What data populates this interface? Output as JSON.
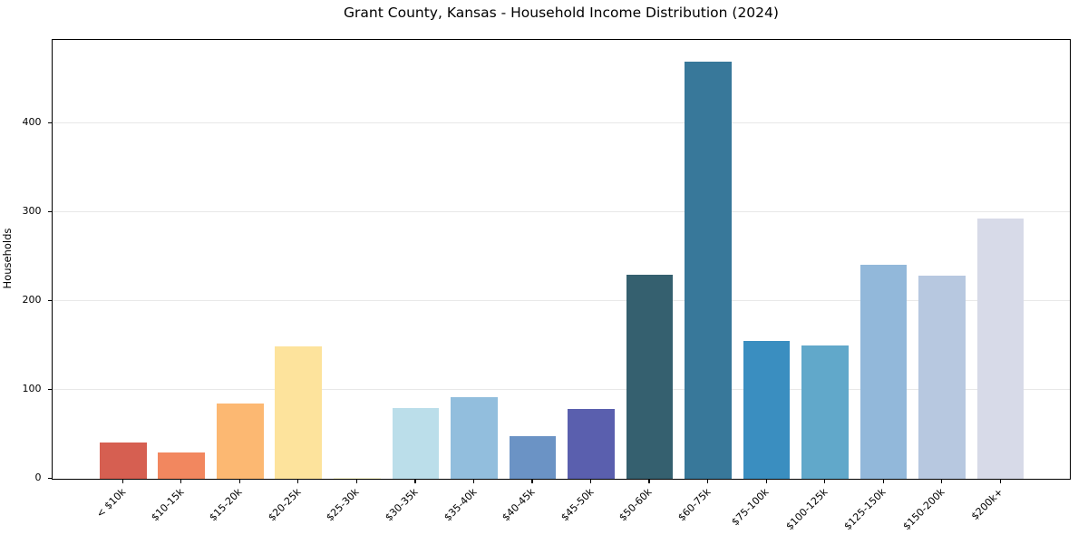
{
  "chart_data": {
    "type": "bar",
    "title": "Grant County, Kansas - Household Income Distribution (2024)",
    "xlabel": "",
    "ylabel": "Households",
    "categories": [
      "< $10k",
      "$10-15k",
      "$15-20k",
      "$20-25k",
      "$25-30k",
      "$30-35k",
      "$35-40k",
      "$40-45k",
      "$45-50k",
      "$50-60k",
      "$60-75k",
      "$75-100k",
      "$100-125k",
      "$125-150k",
      "$150-200k",
      "$200k+"
    ],
    "values": [
      41,
      30,
      85,
      149,
      1,
      80,
      92,
      48,
      79,
      230,
      470,
      155,
      150,
      241,
      229,
      293
    ],
    "bar_colors": [
      "#d65f51",
      "#f2875f",
      "#fcb872",
      "#fde39c",
      "#fdfbd4",
      "#bbdeea",
      "#92bedd",
      "#6b93c5",
      "#5a5fae",
      "#35606f",
      "#38789a",
      "#3a8ec0",
      "#61a8ca",
      "#92b8da",
      "#b7c8e0",
      "#d7dae8"
    ],
    "ylim": [
      0,
      494
    ],
    "yticks": [
      0,
      100,
      200,
      300,
      400
    ],
    "grid": "horizontal-only",
    "legend": "none",
    "background_color": "#ffffff",
    "gridline_color": "#e8e8e8"
  }
}
